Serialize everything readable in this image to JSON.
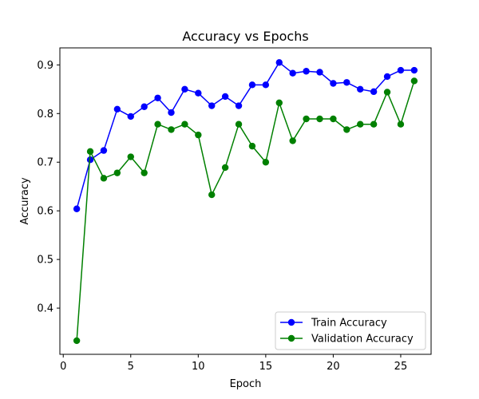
{
  "chart_data": {
    "type": "line",
    "title": "Accuracy vs Epochs",
    "xlabel": "Epoch",
    "ylabel": "Accuracy",
    "xlim": [
      -0.25,
      27.25
    ],
    "ylim": [
      0.305,
      0.935
    ],
    "xticks": [
      0,
      5,
      10,
      15,
      20,
      25
    ],
    "yticks": [
      0.4,
      0.5,
      0.6,
      0.7,
      0.8,
      0.9
    ],
    "grid": false,
    "legend_position": "lower-right",
    "x": [
      1,
      2,
      3,
      4,
      5,
      6,
      7,
      8,
      9,
      10,
      11,
      12,
      13,
      14,
      15,
      16,
      17,
      18,
      19,
      20,
      21,
      22,
      23,
      24,
      25,
      26
    ],
    "series": [
      {
        "name": "Train Accuracy",
        "color": "#0000ff",
        "marker": "circle",
        "values": [
          0.604,
          0.705,
          0.724,
          0.809,
          0.794,
          0.814,
          0.832,
          0.802,
          0.85,
          0.842,
          0.816,
          0.835,
          0.816,
          0.859,
          0.859,
          0.905,
          0.883,
          0.887,
          0.885,
          0.862,
          0.864,
          0.85,
          0.845,
          0.876,
          0.889,
          0.889
        ]
      },
      {
        "name": "Validation Accuracy",
        "color": "#008000",
        "marker": "circle",
        "values": [
          0.333,
          0.722,
          0.667,
          0.678,
          0.711,
          0.678,
          0.778,
          0.767,
          0.778,
          0.756,
          0.633,
          0.689,
          0.778,
          0.733,
          0.7,
          0.822,
          0.744,
          0.789,
          0.789,
          0.789,
          0.767,
          0.778,
          0.778,
          0.844,
          0.778,
          0.867
        ]
      }
    ]
  }
}
